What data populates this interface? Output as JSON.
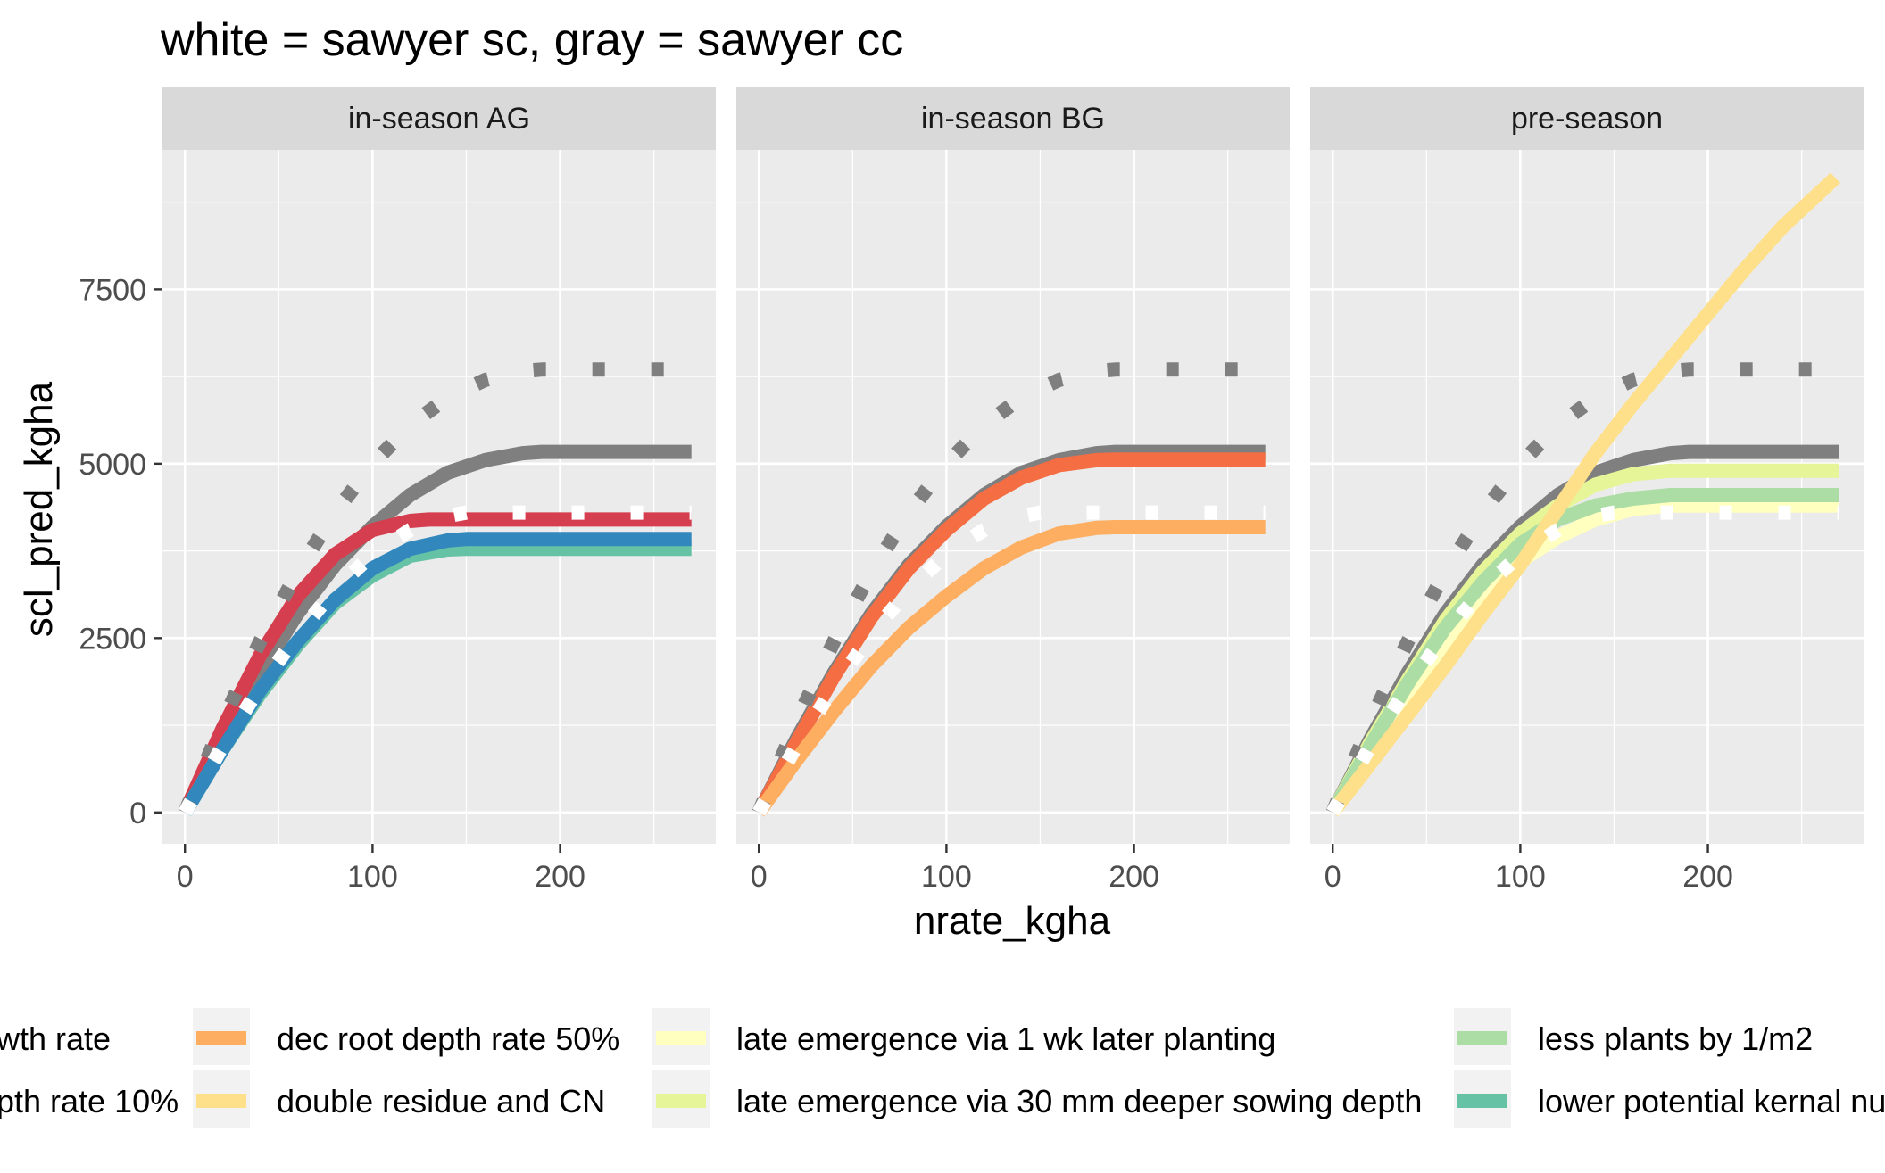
{
  "chart_data": {
    "type": "line",
    "title": "white = sawyer sc, gray = sawyer cc",
    "xlabel": "nrate_kgha",
    "ylabel": "scl_pred_kgha",
    "xlim": [
      -12,
      283
    ],
    "ylim": [
      -450,
      9500
    ],
    "x_ticks": [
      0,
      100,
      200
    ],
    "y_ticks": [
      0,
      2500,
      5000,
      7500
    ],
    "x_tick_labels": [
      "0",
      "100",
      "200"
    ],
    "y_tick_labels": [
      "0",
      "2500",
      "5000",
      "7500"
    ],
    "grid": true,
    "legend_position": "bottom",
    "panels": [
      {
        "label": "in-season AG",
        "series": [
          {
            "name": "gray-solid",
            "color": "#7f7f7f",
            "style": "solid",
            "x": [
              0,
              20,
              40,
              60,
              80,
              100,
              120,
              140,
              160,
              180,
              190,
              270
            ],
            "y": [
              0,
              1050,
              2000,
              2850,
              3550,
              4100,
              4550,
              4870,
              5050,
              5150,
              5170,
              5170
            ]
          },
          {
            "name": "red-solid",
            "color": "#d53e4f",
            "style": "solid",
            "x": [
              0,
              20,
              40,
              60,
              80,
              100,
              120,
              130,
              270
            ],
            "y": [
              0,
              1200,
              2250,
              3100,
              3700,
              4050,
              4180,
              4200,
              4200
            ]
          },
          {
            "name": "teal-solid",
            "color": "#66c2a5",
            "style": "solid",
            "x": [
              0,
              20,
              40,
              60,
              80,
              100,
              120,
              140,
              150,
              270
            ],
            "y": [
              0,
              900,
              1700,
              2400,
              3000,
              3400,
              3680,
              3770,
              3780,
              3780
            ]
          },
          {
            "name": "blue-solid",
            "color": "#3288bd",
            "style": "solid",
            "x": [
              0,
              20,
              40,
              60,
              80,
              100,
              120,
              140,
              150,
              270
            ],
            "y": [
              0,
              900,
              1750,
              2450,
              3050,
              3500,
              3780,
              3900,
              3920,
              3920
            ]
          },
          {
            "name": "gray-dotted",
            "color": "#7f7f7f",
            "style": "dotted",
            "x": [
              0,
              20,
              40,
              60,
              80,
              100,
              120,
              140,
              160,
              180,
              190,
              270
            ],
            "y": [
              0,
              1300,
              2450,
              3450,
              4300,
              5000,
              5550,
              5950,
              6200,
              6330,
              6350,
              6350
            ]
          },
          {
            "name": "white-dotted",
            "color": "#ffffff",
            "style": "dotted",
            "x": [
              0,
              20,
              40,
              60,
              80,
              100,
              120,
              140,
              150,
              270
            ],
            "y": [
              0,
              950,
              1800,
              2550,
              3200,
              3700,
              4050,
              4250,
              4300,
              4300
            ]
          }
        ]
      },
      {
        "label": "in-season BG",
        "series": [
          {
            "name": "gray-solid",
            "color": "#7f7f7f",
            "style": "solid",
            "x": [
              0,
              20,
              40,
              60,
              80,
              100,
              120,
              140,
              160,
              180,
              190,
              270
            ],
            "y": [
              0,
              1050,
              2000,
              2850,
              3550,
              4100,
              4550,
              4870,
              5050,
              5150,
              5170,
              5170
            ]
          },
          {
            "name": "orange-solid",
            "color": "#f46d43",
            "style": "solid",
            "x": [
              0,
              20,
              40,
              60,
              80,
              100,
              120,
              140,
              160,
              180,
              190,
              270
            ],
            "y": [
              0,
              1000,
              1950,
              2800,
              3500,
              4050,
              4500,
              4800,
              4980,
              5050,
              5060,
              5060
            ]
          },
          {
            "name": "light-orange-solid",
            "color": "#fdae61",
            "style": "solid",
            "x": [
              0,
              20,
              40,
              60,
              80,
              100,
              120,
              140,
              160,
              180,
              190,
              270
            ],
            "y": [
              0,
              750,
              1450,
              2100,
              2650,
              3100,
              3500,
              3800,
              4000,
              4080,
              4090,
              4090
            ]
          },
          {
            "name": "gray-dotted",
            "color": "#7f7f7f",
            "style": "dotted",
            "x": [
              0,
              20,
              40,
              60,
              80,
              100,
              120,
              140,
              160,
              180,
              190,
              270
            ],
            "y": [
              0,
              1300,
              2450,
              3450,
              4300,
              5000,
              5550,
              5950,
              6200,
              6330,
              6350,
              6350
            ]
          },
          {
            "name": "white-dotted",
            "color": "#ffffff",
            "style": "dotted",
            "x": [
              0,
              20,
              40,
              60,
              80,
              100,
              120,
              140,
              150,
              270
            ],
            "y": [
              0,
              950,
              1800,
              2550,
              3200,
              3700,
              4050,
              4250,
              4300,
              4300
            ]
          }
        ]
      },
      {
        "label": "pre-season",
        "series": [
          {
            "name": "gray-solid",
            "color": "#7f7f7f",
            "style": "solid",
            "x": [
              0,
              20,
              40,
              60,
              80,
              100,
              120,
              140,
              160,
              180,
              190,
              270
            ],
            "y": [
              0,
              1050,
              2000,
              2850,
              3550,
              4100,
              4550,
              4870,
              5050,
              5150,
              5170,
              5170
            ]
          },
          {
            "name": "yellow-green-solid",
            "color": "#e6f598",
            "style": "solid",
            "x": [
              0,
              20,
              40,
              60,
              80,
              100,
              120,
              140,
              160,
              180,
              190,
              270
            ],
            "y": [
              0,
              1000,
              1900,
              2750,
              3450,
              4000,
              4400,
              4700,
              4850,
              4900,
              4900,
              4900
            ]
          },
          {
            "name": "pale-yellow-solid",
            "color": "#ffffbf",
            "style": "solid",
            "x": [
              0,
              20,
              40,
              60,
              80,
              100,
              120,
              140,
              160,
              180,
              190,
              270
            ],
            "y": [
              0,
              850,
              1700,
              2450,
              3100,
              3600,
              3950,
              4200,
              4350,
              4400,
              4400,
              4400
            ]
          },
          {
            "name": "light-green-solid",
            "color": "#abdda4",
            "style": "solid",
            "x": [
              0,
              20,
              40,
              60,
              80,
              100,
              120,
              140,
              160,
              180,
              190,
              270
            ],
            "y": [
              0,
              950,
              1850,
              2650,
              3300,
              3850,
              4200,
              4400,
              4500,
              4550,
              4550,
              4550
            ]
          },
          {
            "name": "light-yellow-solid",
            "color": "#fee08b",
            "style": "solid",
            "x": [
              0,
              20,
              40,
              60,
              80,
              100,
              120,
              140,
              160,
              180,
              200,
              220,
              240,
              268
            ],
            "y": [
              0,
              700,
              1400,
              2100,
              2850,
              3550,
              4350,
              5150,
              5850,
              6500,
              7150,
              7800,
              8400,
              9100
            ]
          },
          {
            "name": "gray-dotted",
            "color": "#7f7f7f",
            "style": "dotted",
            "x": [
              0,
              20,
              40,
              60,
              80,
              100,
              120,
              140,
              160,
              180,
              190,
              270
            ],
            "y": [
              0,
              1300,
              2450,
              3450,
              4300,
              5000,
              5550,
              5950,
              6200,
              6330,
              6350,
              6350
            ]
          },
          {
            "name": "white-dotted",
            "color": "#ffffff",
            "style": "dotted",
            "x": [
              0,
              20,
              40,
              60,
              80,
              100,
              120,
              140,
              150,
              270
            ],
            "y": [
              0,
              950,
              1800,
              2550,
              3200,
              3700,
              4050,
              4250,
              4300,
              4300
            ]
          }
        ]
      }
    ],
    "legend": {
      "columns": [
        [
          {
            "label": "wth rate",
            "color": "#d53e4f"
          },
          {
            "label": "pth rate 10%",
            "color": "#f46d43"
          }
        ],
        [
          {
            "label": "dec root depth rate 50%",
            "color": "#fdae61"
          },
          {
            "label": "double residue and CN",
            "color": "#fee08b"
          }
        ],
        [
          {
            "label": "late emergence via 1 wk later planting",
            "color": "#ffffbf"
          },
          {
            "label": "late emergence via 30 mm deeper sowing depth",
            "color": "#e6f598"
          }
        ],
        [
          {
            "label": "less plants by 1/m2",
            "color": "#abdda4"
          },
          {
            "label": "lower potential kernal nu",
            "color": "#66c2a5"
          }
        ]
      ]
    }
  }
}
